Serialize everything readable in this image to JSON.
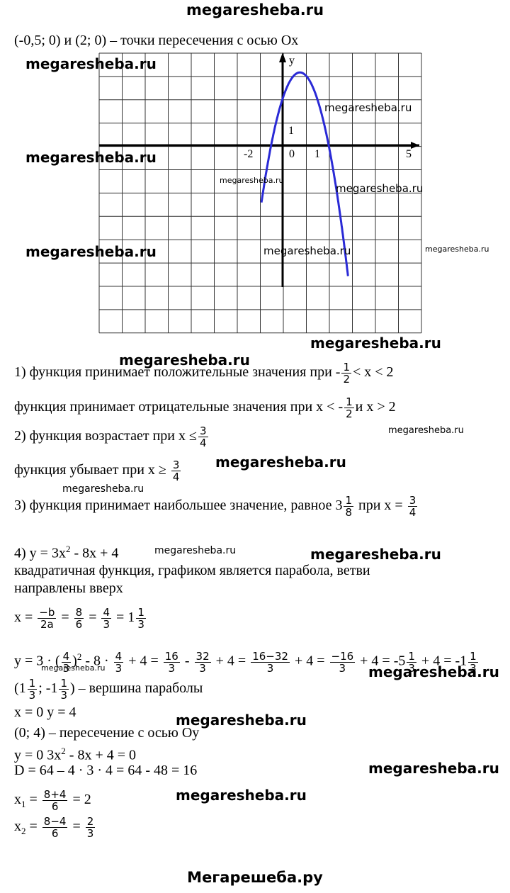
{
  "header": "megaresheba.ru",
  "graph": {
    "labels": {
      "y": "y",
      "one_y": "1",
      "zero": "0",
      "minus_two": "-2",
      "one_x": "1",
      "five": "5"
    }
  },
  "lines": [
    {
      "parts": [
        "(-0,5; 0) и (2; 0) – точки пересечения с осью Ох"
      ]
    },
    {
      "parts": [
        "1) функция принимает положительные значения при -",
        {
          "num": "1",
          "den": "2"
        },
        "< x < 2"
      ]
    },
    {
      "parts": [
        "функция принимает отрицательные значения при x < -",
        {
          "num": "1",
          "den": "2"
        },
        "и x > 2"
      ]
    },
    {
      "parts": [
        "2) функция возрастает при x ≤",
        {
          "num": "3",
          "den": "4"
        }
      ]
    },
    {
      "parts": [
        "функция убывает при x ≥ ",
        {
          "num": "3",
          "den": "4"
        }
      ]
    },
    {
      "parts": [
        "3) функция принимает наибольшее значение, равное 3",
        {
          "num": "1",
          "den": "8"
        },
        " при x = ",
        {
          "num": "3",
          "den": "4"
        }
      ]
    },
    {
      "parts": [
        "4) y = 3x",
        {
          "sup": "2"
        },
        " - 8x + 4"
      ]
    },
    {
      "parts": [
        "квадратичная функция, графиком является парабола, ветви"
      ]
    },
    {
      "parts": [
        "направлены вверх"
      ]
    },
    {
      "parts": [
        "x = ",
        {
          "num": "−b",
          "den": "2a"
        },
        " = ",
        {
          "num": "8",
          "den": "6"
        },
        " = ",
        {
          "num": "4",
          "den": "3"
        },
        " = 1",
        {
          "num": "1",
          "den": "3"
        }
      ]
    },
    {
      "parts": [
        "y = 3 · (",
        {
          "num": "4",
          "den": "3"
        },
        ")",
        {
          "sup": "2"
        },
        " - 8 · ",
        {
          "num": "4",
          "den": "3"
        },
        " + 4 = ",
        {
          "num": "16",
          "den": "3"
        },
        " - ",
        {
          "num": "32",
          "den": "3"
        },
        " + 4 = ",
        {
          "num": "16−32",
          "den": "3"
        },
        " + 4 = ",
        {
          "num": "−16",
          "den": "3"
        },
        " + 4 = -5",
        {
          "num": "1",
          "den": "3"
        },
        " + 4 = -1",
        {
          "num": "1",
          "den": "3"
        }
      ]
    },
    {
      "parts": [
        "(1",
        {
          "num": "1",
          "den": "3"
        },
        "; -1",
        {
          "num": "1",
          "den": "3"
        },
        ") – вершина параболы"
      ]
    },
    {
      "parts": [
        "x = 0        y = 4"
      ]
    },
    {
      "parts": [
        "(0; 4) – пересечение с осью Оу"
      ]
    },
    {
      "parts": [
        "y = 0       3x",
        {
          "sup": "2"
        },
        " - 8x + 4  = 0"
      ]
    },
    {
      "parts": [
        "D = 64 – 4 · 3 · 4 = 64 - 48 = 16"
      ]
    },
    {
      "parts": [
        "x",
        {
          "sub": "1"
        },
        " = ",
        {
          "num": "8+4",
          "den": "6"
        },
        " = 2"
      ]
    },
    {
      "parts": [
        "x",
        {
          "sub": "2"
        },
        " = ",
        {
          "num": "8−4",
          "den": "6"
        },
        " = ",
        {
          "num": "2",
          "den": "3"
        }
      ]
    }
  ],
  "watermarks": [
    "megaresheba.ru",
    "megaresheba.ru",
    "megaresheba.ru",
    "megaresheba.ru",
    "megaresheba.ru",
    "megaresheba.ru",
    "megaresheba.ru",
    "megaresheba.ru",
    "megaresheba.ru",
    "megaresheba.ru",
    "megaresheba.ru",
    "megaresheba.ru",
    "megaresheba.ru",
    "megaresheba.ru",
    "megaresheba.ru",
    "megaresheba.ru",
    "megaresheba.ru",
    "megaresheba.ru",
    "megaresheba.ru",
    "megaresheba.ru"
  ],
  "footer": "Мегарешеба.ру"
}
